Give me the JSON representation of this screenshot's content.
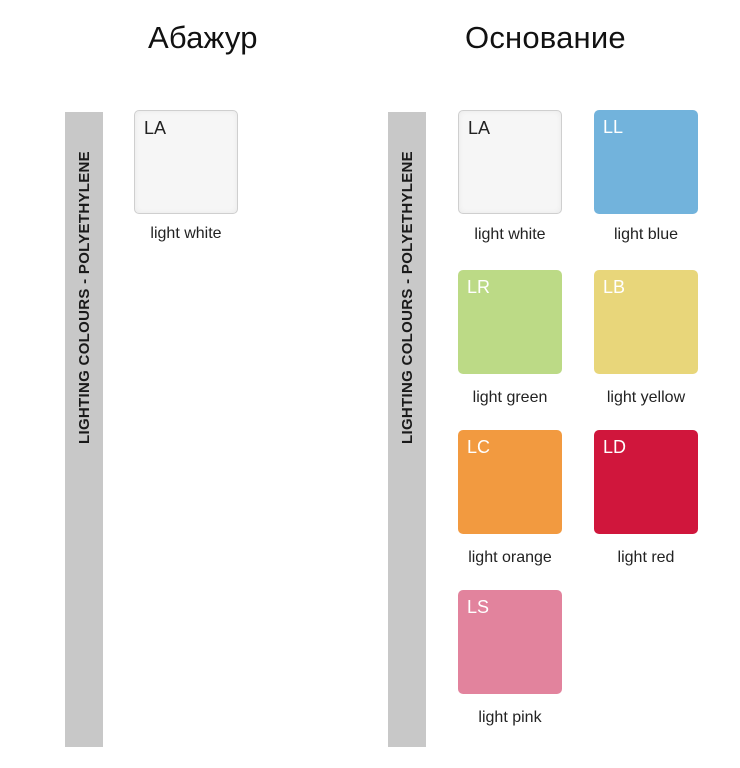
{
  "headings": {
    "shade": "Абажур",
    "base": "Основание"
  },
  "side_label": "LIGHTING COLOURS - POLYETHYLENE",
  "shade_colors": [
    {
      "code": "LA",
      "name": "light white",
      "color": "#f6f6f6"
    }
  ],
  "base_colors": [
    {
      "code": "LA",
      "name": "light white",
      "color": "#f6f6f6"
    },
    {
      "code": "LL",
      "name": "light blue",
      "color": "#72b3dc"
    },
    {
      "code": "LR",
      "name": "light green",
      "color": "#bcda86"
    },
    {
      "code": "LB",
      "name": "light yellow",
      "color": "#e8d67a"
    },
    {
      "code": "LC",
      "name": "light orange",
      "color": "#f29a40"
    },
    {
      "code": "LD",
      "name": "light red",
      "color": "#d0163c"
    },
    {
      "code": "LS",
      "name": "light pink",
      "color": "#e2839d"
    }
  ]
}
